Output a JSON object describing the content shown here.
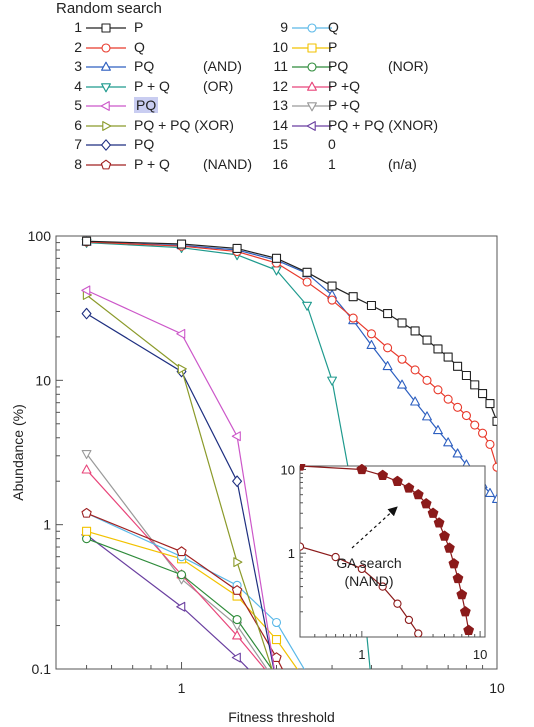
{
  "legend": {
    "title": "Random search",
    "entries": [
      {
        "num": "1",
        "label": "P",
        "note": "",
        "color": "#222222",
        "marker": "square",
        "col": 0
      },
      {
        "num": "2",
        "label": "Q",
        "note": "",
        "color": "#e8392b",
        "marker": "circle",
        "col": 0
      },
      {
        "num": "3",
        "label": "PQ",
        "note": "(AND)",
        "color": "#2d5fc0",
        "marker": "triangle-up",
        "col": 0
      },
      {
        "num": "4",
        "label": "P + Q",
        "note": "(OR)",
        "color": "#1f9a8e",
        "marker": "triangle-down",
        "col": 0
      },
      {
        "num": "5",
        "label": "PQ",
        "note": "",
        "color": "#cc57c9",
        "marker": "triangle-left",
        "col": 0,
        "highlight": true
      },
      {
        "num": "6",
        "label": "PQ + PQ (XOR)",
        "note": "",
        "color": "#8b9a2a",
        "marker": "triangle-right",
        "col": 0
      },
      {
        "num": "7",
        "label": "PQ",
        "note": "",
        "color": "#1e2f80",
        "marker": "diamond",
        "col": 0
      },
      {
        "num": "8",
        "label": "P + Q",
        "note": "(NAND)",
        "color": "#a02020",
        "marker": "pentagon",
        "col": 0
      },
      {
        "num": "9",
        "label": "Q",
        "note": "",
        "color": "#5ab8e8",
        "marker": "circle",
        "col": 1
      },
      {
        "num": "10",
        "label": "P",
        "note": "",
        "color": "#f2c200",
        "marker": "square",
        "col": 1
      },
      {
        "num": "11",
        "label": "PQ",
        "note": "(NOR)",
        "color": "#2e8b3a",
        "marker": "circle",
        "col": 1
      },
      {
        "num": "12",
        "label": "P +Q",
        "note": "",
        "color": "#e8457a",
        "marker": "triangle-up",
        "col": 1
      },
      {
        "num": "13",
        "label": "P +Q",
        "note": "",
        "color": "#9a9a9a",
        "marker": "triangle-down",
        "col": 1
      },
      {
        "num": "14",
        "label": "PQ + PQ (XNOR)",
        "note": "",
        "color": "#6a3fa0",
        "marker": "triangle-left",
        "col": 1
      },
      {
        "num": "15",
        "label": "0",
        "note": "",
        "color": "none",
        "marker": "none",
        "col": 1
      },
      {
        "num": "16",
        "label": "1",
        "note": "(n/a)",
        "color": "none",
        "marker": "none",
        "col": 1
      }
    ]
  },
  "chart_data": {
    "type": "line",
    "xlabel": "Fitness threshold",
    "ylabel": "Abundance (%)",
    "xscale": "log",
    "yscale": "log",
    "xlim": [
      0.4,
      10
    ],
    "ylim": [
      0.1,
      100
    ],
    "xticks": [
      "1",
      "10"
    ],
    "yticks": [
      "0.1",
      "1",
      "10",
      "100"
    ],
    "series": [
      {
        "name": "P",
        "color": "#222222",
        "marker": "square",
        "points": [
          [
            0.5,
            92
          ],
          [
            1.0,
            88
          ],
          [
            1.5,
            82
          ],
          [
            2.0,
            70
          ],
          [
            2.5,
            56
          ],
          [
            3.0,
            45
          ],
          [
            3.5,
            38
          ],
          [
            4.0,
            33
          ],
          [
            4.5,
            29
          ],
          [
            5.0,
            25
          ],
          [
            5.5,
            22
          ],
          [
            6.0,
            19
          ],
          [
            6.5,
            16.5
          ],
          [
            7.0,
            14.5
          ],
          [
            7.5,
            12.5
          ],
          [
            8.0,
            10.8
          ],
          [
            8.5,
            9.3
          ],
          [
            9.0,
            8.1
          ],
          [
            9.5,
            6.9
          ],
          [
            10.0,
            5.2
          ]
        ]
      },
      {
        "name": "Q",
        "color": "#e8392b",
        "marker": "circle",
        "points": [
          [
            0.5,
            91
          ],
          [
            1.0,
            85
          ],
          [
            1.5,
            78
          ],
          [
            2.0,
            65
          ],
          [
            2.5,
            48
          ],
          [
            3.0,
            36
          ],
          [
            3.5,
            27
          ],
          [
            4.0,
            21
          ],
          [
            4.5,
            16.8
          ],
          [
            5.0,
            14
          ],
          [
            5.5,
            11.8
          ],
          [
            6.0,
            10
          ],
          [
            6.5,
            8.6
          ],
          [
            7.0,
            7.4
          ],
          [
            7.5,
            6.5
          ],
          [
            8.0,
            5.7
          ],
          [
            8.5,
            4.9
          ],
          [
            9.0,
            4.3
          ],
          [
            9.5,
            3.6
          ],
          [
            10.0,
            2.5
          ]
        ]
      },
      {
        "name": "PQ (AND)",
        "color": "#2d5fc0",
        "marker": "triangle-up",
        "points": [
          [
            0.5,
            91
          ],
          [
            1.0,
            86
          ],
          [
            1.5,
            80
          ],
          [
            2.0,
            68
          ],
          [
            2.5,
            55
          ],
          [
            3.0,
            39
          ],
          [
            3.5,
            26
          ],
          [
            4.0,
            17.5
          ],
          [
            4.5,
            12.5
          ],
          [
            5.0,
            9.3
          ],
          [
            5.5,
            7.1
          ],
          [
            6.0,
            5.6
          ],
          [
            6.5,
            4.5
          ],
          [
            7.0,
            3.7
          ],
          [
            7.5,
            3.1
          ],
          [
            8.0,
            2.6
          ],
          [
            8.5,
            2.2
          ],
          [
            9.0,
            1.9
          ],
          [
            9.5,
            1.65
          ],
          [
            10.0,
            1.5
          ]
        ]
      },
      {
        "name": "P + Q (OR)",
        "color": "#1f9a8e",
        "marker": "triangle-down",
        "points": [
          [
            0.5,
            90
          ],
          [
            1.0,
            83
          ],
          [
            1.5,
            74
          ],
          [
            2.0,
            58
          ],
          [
            2.5,
            33
          ],
          [
            3.0,
            10
          ],
          [
            3.5,
            1.6
          ],
          [
            4.0,
            0.08
          ]
        ]
      },
      {
        "name": "PQ",
        "color": "#cc57c9",
        "marker": "triangle-left",
        "points": [
          [
            0.5,
            42
          ],
          [
            1.0,
            21
          ],
          [
            1.5,
            4.1
          ],
          [
            2.0,
            0.08
          ]
        ]
      },
      {
        "name": "PQ + PQ (XOR)",
        "color": "#8b9a2a",
        "marker": "triangle-right",
        "points": [
          [
            0.5,
            39
          ],
          [
            1.0,
            12
          ],
          [
            1.5,
            0.55
          ],
          [
            2.0,
            0.08
          ]
        ]
      },
      {
        "name": "PQ",
        "color": "#1e2f80",
        "marker": "diamond",
        "points": [
          [
            0.5,
            29
          ],
          [
            1.0,
            11.5
          ],
          [
            1.5,
            2.0
          ],
          [
            2.0,
            0.08
          ]
        ]
      },
      {
        "name": "P + Q (NAND)",
        "color": "#a02020",
        "marker": "pentagon",
        "points": [
          [
            0.5,
            1.2
          ],
          [
            1.0,
            0.65
          ],
          [
            1.5,
            0.35
          ],
          [
            2.0,
            0.12
          ],
          [
            2.2,
            0.08
          ]
        ]
      },
      {
        "name": "Q",
        "color": "#5ab8e8",
        "marker": "circle",
        "points": [
          [
            0.5,
            1.2
          ],
          [
            1.0,
            0.6
          ],
          [
            1.5,
            0.38
          ],
          [
            2.0,
            0.21
          ],
          [
            2.6,
            0.08
          ]
        ]
      },
      {
        "name": "P",
        "color": "#f2c200",
        "marker": "square",
        "points": [
          [
            0.5,
            0.9
          ],
          [
            1.0,
            0.58
          ],
          [
            1.5,
            0.32
          ],
          [
            2.0,
            0.16
          ],
          [
            2.5,
            0.08
          ]
        ]
      },
      {
        "name": "PQ (NOR)",
        "color": "#2e8b3a",
        "marker": "circle",
        "points": [
          [
            0.5,
            0.8
          ],
          [
            1.0,
            0.45
          ],
          [
            1.5,
            0.22
          ],
          [
            2.0,
            0.09
          ],
          [
            2.1,
            0.08
          ]
        ]
      },
      {
        "name": "P +Q",
        "color": "#e8457a",
        "marker": "triangle-up",
        "points": [
          [
            0.5,
            2.4
          ],
          [
            1.0,
            0.45
          ],
          [
            1.5,
            0.17
          ],
          [
            2.0,
            0.08
          ]
        ]
      },
      {
        "name": "P +Q",
        "color": "#9a9a9a",
        "marker": "triangle-down",
        "points": [
          [
            0.5,
            3.1
          ],
          [
            1.0,
            0.42
          ],
          [
            1.5,
            0.2
          ],
          [
            2.0,
            0.08
          ]
        ]
      },
      {
        "name": "PQ + PQ (XNOR)",
        "color": "#6a3fa0",
        "marker": "triangle-left",
        "points": [
          [
            0.5,
            0.85
          ],
          [
            1.0,
            0.27
          ],
          [
            1.5,
            0.12
          ],
          [
            1.8,
            0.08
          ]
        ]
      }
    ],
    "inset": {
      "annotation": "GA search\n(NAND)",
      "xscale": "log",
      "yscale": "log",
      "xlim": [
        0.3,
        11
      ],
      "ylim": [
        0.1,
        11
      ],
      "xticks": [
        "1",
        "10"
      ],
      "yticks": [
        "1",
        "10"
      ],
      "series": [
        {
          "name": "GA search (NAND)",
          "color": "#8b1a1a",
          "marker": "pentagon",
          "filled": true,
          "points": [
            [
              0.3,
              11
            ],
            [
              1.0,
              10
            ],
            [
              1.5,
              8.5
            ],
            [
              2.0,
              7.2
            ],
            [
              2.5,
              6.0
            ],
            [
              3.0,
              5.0
            ],
            [
              3.5,
              3.9
            ],
            [
              4.0,
              3.0
            ],
            [
              4.5,
              2.3
            ],
            [
              5.0,
              1.6
            ],
            [
              5.5,
              1.15
            ],
            [
              6.0,
              0.75
            ],
            [
              6.5,
              0.5
            ],
            [
              7.0,
              0.32
            ],
            [
              7.5,
              0.2
            ],
            [
              8.0,
              0.12
            ]
          ]
        },
        {
          "name": "Random search (NAND)",
          "color": "#8b1a1a",
          "marker": "circle",
          "filled": false,
          "points": [
            [
              0.3,
              1.2
            ],
            [
              0.6,
              0.9
            ],
            [
              1.0,
              0.65
            ],
            [
              1.5,
              0.4
            ],
            [
              2.0,
              0.25
            ],
            [
              2.5,
              0.16
            ],
            [
              3.0,
              0.11
            ]
          ]
        }
      ]
    }
  }
}
